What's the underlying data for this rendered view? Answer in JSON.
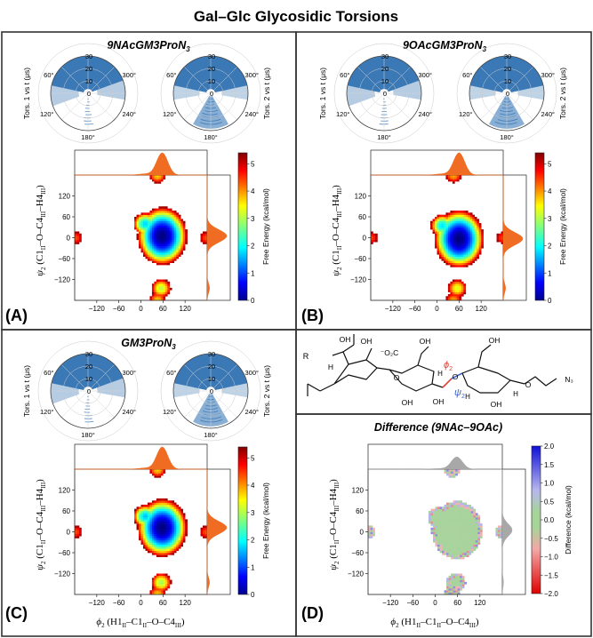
{
  "figure_title": "Gal–Glc Glycosidic Torsions",
  "colors": {
    "density_blue": "#2a6eb0",
    "histogram_orange": "#ef6c22",
    "histogram_gray": "#a8a8a8",
    "panel_border": "#333333"
  },
  "colorbars": {
    "free_energy": {
      "label": "Free Energy (kcal/mol)",
      "ticks": [
        "0",
        "1",
        "2",
        "3",
        "4",
        "5"
      ],
      "colormap": "jet"
    },
    "difference": {
      "label": "Difference (kcal/mol)",
      "ticks": [
        "2.0",
        "1.5",
        "1.0",
        "0.5",
        "0.0",
        "−0.5",
        "−1.0",
        "−1.5",
        "−2.0"
      ],
      "colormap": "red-white-blue"
    }
  },
  "polar": {
    "ylabel_left": "Tors. 1 vs t (μs)",
    "ylabel_right": "Tors. 2 vs t (μs)",
    "radial_ticks": [
      "0",
      "10",
      "20",
      "30"
    ],
    "angle_labels": {
      "top": "0°",
      "left_upper": "60°",
      "left_lower": "120°",
      "bottom": "180°",
      "right_lower": "240°",
      "right_upper": "300°"
    }
  },
  "axis_labels": {
    "psi_prefix": "ψ",
    "psi_sub": "2",
    "psi_body": " (C1",
    "psi_s1": "II",
    "psi_mid": "–O–C4",
    "psi_s2": "III",
    "psi_end": "–H4",
    "psi_s3": "III",
    "psi_close": ")",
    "phi_prefix": "ϕ",
    "phi_sub": "2",
    "phi_body": " (H1",
    "phi_s1": "II",
    "phi_mid": "–C1",
    "phi_s2": "II",
    "phi_end": "–O–C4",
    "phi_s3": "III",
    "phi_close": ")"
  },
  "x_ticks": [
    "−120",
    "−60",
    "0",
    "60",
    "120"
  ],
  "y_ticks": [
    "120",
    "60",
    "0",
    "−60",
    "−120"
  ],
  "panels": [
    {
      "id": "A",
      "letter": "(A)",
      "title": "9NAcGM3ProN",
      "title_sub": "3"
    },
    {
      "id": "B",
      "letter": "(B)",
      "title": "9OAcGM3ProN",
      "title_sub": "3"
    },
    {
      "id": "C",
      "letter": "(C)",
      "title": "GM3ProN",
      "title_sub": "3"
    },
    {
      "id": "D",
      "letter": "(D)",
      "title": "Difference (9NAc–9OAc)",
      "title_sub": ""
    }
  ],
  "structure": {
    "r_label": "R",
    "oh_labels": [
      "OH",
      "OH",
      "OH",
      "OH",
      "OH",
      "OH",
      "OH"
    ],
    "co2_label": "⁻O₂C",
    "h_labels": [
      "H",
      "H",
      "H",
      "H"
    ],
    "o_labels": [
      "O",
      "O",
      "O",
      "O"
    ],
    "n3_label": "N₃",
    "phi_label": "ϕ",
    "phi_sub": "2",
    "psi_label": "ψ",
    "psi_sub": "2",
    "phi_color": "#e0453a",
    "psi_color": "#3f63c9"
  },
  "chart_data": [
    {
      "type": "heatmap",
      "panel": "A",
      "title": "9NAcGM3ProN3",
      "xlabel": "ϕ2 (H1II–C1II–O–C4III)",
      "ylabel": "ψ2 (C1II–O–C4III–H4III)",
      "xlim": [
        -180,
        180
      ],
      "ylim": [
        -180,
        180
      ],
      "colorbar": "Free Energy (kcal/mol)",
      "crange": [
        0,
        5.4
      ],
      "minima": [
        {
          "phi": 58,
          "psi": 5,
          "free_energy": 0.0
        },
        {
          "phi": 12,
          "psi": 40,
          "free_energy": 1.8
        },
        {
          "phi": 55,
          "psi": -145,
          "free_energy": 3.0
        },
        {
          "phi": 45,
          "psi": 180,
          "free_energy": 3.6
        },
        {
          "phi": -178,
          "psi": 0,
          "free_energy": 4.3
        },
        {
          "phi": 178,
          "psi": 0,
          "free_energy": 4.3
        }
      ]
    },
    {
      "type": "heatmap",
      "panel": "B",
      "title": "9OAcGM3ProN3",
      "xlabel": "ϕ2 (H1II–C1II–O–C4III)",
      "ylabel": "ψ2 (C1II–O–C4III–H4III)",
      "xlim": [
        -180,
        180
      ],
      "ylim": [
        -180,
        180
      ],
      "colorbar": "Free Energy (kcal/mol)",
      "crange": [
        0,
        5.4
      ],
      "minima": [
        {
          "phi": 60,
          "psi": -3,
          "free_energy": 0.0
        },
        {
          "phi": 15,
          "psi": 35,
          "free_energy": 1.9
        },
        {
          "phi": 55,
          "psi": -145,
          "free_energy": 3.2
        },
        {
          "phi": 45,
          "psi": 180,
          "free_energy": 3.8
        },
        {
          "phi": -178,
          "psi": 0,
          "free_energy": 4.4
        },
        {
          "phi": 178,
          "psi": 0,
          "free_energy": 4.4
        }
      ]
    },
    {
      "type": "heatmap",
      "panel": "C",
      "title": "GM3ProN3",
      "xlabel": "ϕ2 (H1II–C1II–O–C4III)",
      "ylabel": "ψ2 (C1II–O–C4III–H4III)",
      "xlim": [
        -180,
        180
      ],
      "ylim": [
        -180,
        180
      ],
      "colorbar": "Free Energy (kcal/mol)",
      "crange": [
        0,
        5.4
      ],
      "minima": [
        {
          "phi": 58,
          "psi": 12,
          "free_energy": 0.0
        },
        {
          "phi": 12,
          "psi": 45,
          "free_energy": 1.7
        },
        {
          "phi": 55,
          "psi": -145,
          "free_energy": 2.9
        },
        {
          "phi": 45,
          "psi": 180,
          "free_energy": 3.6
        },
        {
          "phi": -178,
          "psi": 0,
          "free_energy": 4.3
        },
        {
          "phi": 178,
          "psi": 0,
          "free_energy": 4.3
        }
      ]
    },
    {
      "type": "heatmap",
      "panel": "D",
      "title": "Difference (9NAc–9OAc)",
      "xlabel": "ϕ2 (H1II–C1II–O–C4III)",
      "ylabel": "ψ2 (C1II–O–C4III–H4III)",
      "xlim": [
        -180,
        180
      ],
      "ylim": [
        -180,
        180
      ],
      "colorbar": "Difference (kcal/mol)",
      "crange": [
        -2.0,
        2.0
      ],
      "regions": [
        {
          "phi": 40,
          "psi": 10,
          "difference": 0.0
        },
        {
          "phi": 55,
          "psi": -145,
          "difference": 0.0
        },
        {
          "phi": 45,
          "psi": 180,
          "difference": 0.0
        },
        {
          "phi": -178,
          "psi": 0,
          "difference": 0.0
        }
      ]
    }
  ]
}
